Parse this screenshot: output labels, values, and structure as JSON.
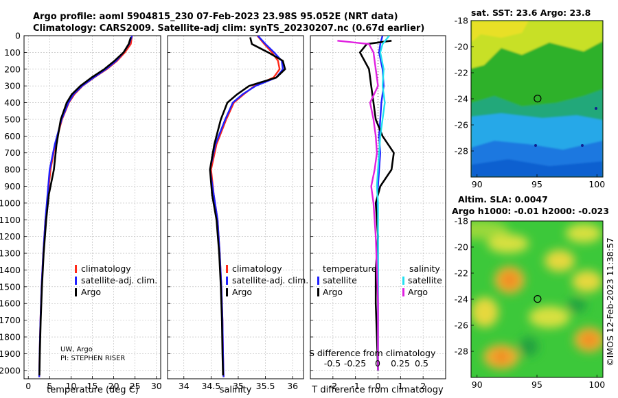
{
  "header": {
    "title_line1": "Argo profile: aoml 5904815_230 07-Feb-2023 23.98S 95.052E (NRT data)",
    "title_line2": "Climatology: CARS2009. Satellite-adj clim: synTS_20230207.nc (0.67d earlier)"
  },
  "colors": {
    "climatology": "#ff2a1a",
    "satellite": "#2020ff",
    "argo": "#000000",
    "sat_temp": "#2020ff",
    "sat_sal": "#22e0f0",
    "argo_sal": "#e020e0"
  },
  "credit": {
    "line1": "UW, Argo",
    "line2": "PI: STEPHEN RISER"
  },
  "timestamp": "©IMOS 12-Feb-2023 11:38:57",
  "chart_data": [
    {
      "type": "line",
      "id": "temperature",
      "xlabel": "temperature (deg C)",
      "ylabel": "",
      "xlim": [
        -1,
        31
      ],
      "ylim": [
        2050,
        0
      ],
      "xticks": [
        0,
        5,
        10,
        15,
        20,
        25,
        30
      ],
      "yticks": [
        0,
        100,
        200,
        300,
        400,
        500,
        600,
        700,
        800,
        900,
        1000,
        1100,
        1200,
        1300,
        1400,
        1500,
        1600,
        1700,
        1800,
        1900,
        2000
      ],
      "legend": [
        "climatology",
        "satellite-adj. clim.",
        "Argo"
      ],
      "series": [
        {
          "name": "climatology",
          "color": "#ff2a1a",
          "x": [
            24.3,
            24.0,
            22.6,
            20.8,
            18.4,
            15.4,
            12.7,
            10.8,
            9.5,
            7.9,
            6.3,
            5.2,
            4.6,
            4.0,
            3.5,
            3.1,
            2.85,
            2.65,
            2.55
          ],
          "y": [
            0,
            50,
            100,
            150,
            200,
            250,
            300,
            350,
            400,
            500,
            650,
            800,
            950,
            1100,
            1300,
            1500,
            1700,
            1900,
            2040
          ]
        },
        {
          "name": "satellite-adj. clim.",
          "color": "#2020ff",
          "x": [
            24.3,
            23.6,
            22.3,
            20.6,
            18.2,
            15.3,
            12.6,
            10.6,
            9.4,
            7.8,
            6.2,
            5.0,
            4.5,
            4.0,
            3.5,
            3.1,
            2.85,
            2.65,
            2.55
          ],
          "y": [
            0,
            50,
            100,
            150,
            200,
            250,
            300,
            350,
            400,
            500,
            650,
            800,
            950,
            1100,
            1300,
            1500,
            1700,
            1900,
            2040
          ]
        },
        {
          "name": "Argo",
          "color": "#000000",
          "x": [
            24.0,
            23.5,
            22.3,
            20.2,
            17.8,
            14.8,
            12.2,
            10.2,
            9.0,
            7.6,
            6.6,
            6.0,
            4.8,
            4.2,
            3.6,
            3.2,
            2.9,
            2.7,
            2.6
          ],
          "y": [
            10,
            50,
            100,
            150,
            200,
            250,
            300,
            350,
            400,
            500,
            650,
            800,
            950,
            1100,
            1300,
            1500,
            1700,
            1900,
            2030
          ]
        }
      ]
    },
    {
      "type": "line",
      "id": "salinity",
      "xlabel": "salinity",
      "xlim": [
        33.7,
        36.2
      ],
      "ylim": [
        2050,
        0
      ],
      "xticks": [
        34,
        34.5,
        35,
        35.5,
        36
      ],
      "legend": [
        "climatology",
        "satellite-adj. clim.",
        "Argo"
      ],
      "series": [
        {
          "name": "climatology",
          "color": "#ff2a1a",
          "x": [
            35.35,
            35.48,
            35.62,
            35.73,
            35.76,
            35.65,
            35.3,
            35.1,
            34.92,
            34.78,
            34.6,
            34.5,
            34.55,
            34.62,
            34.66,
            34.69,
            34.71,
            34.72,
            34.73
          ],
          "y": [
            0,
            50,
            100,
            150,
            200,
            250,
            300,
            350,
            400,
            500,
            650,
            800,
            950,
            1100,
            1300,
            1500,
            1700,
            1900,
            2040
          ]
        },
        {
          "name": "satellite-adj. clim.",
          "color": "#2020ff",
          "x": [
            35.36,
            35.5,
            35.66,
            35.8,
            35.82,
            35.7,
            35.32,
            35.08,
            34.9,
            34.76,
            34.58,
            34.48,
            34.55,
            34.62,
            34.66,
            34.69,
            34.71,
            34.72,
            34.73
          ],
          "y": [
            0,
            50,
            100,
            150,
            200,
            250,
            300,
            350,
            400,
            500,
            650,
            800,
            950,
            1100,
            1300,
            1500,
            1700,
            1900,
            2040
          ]
        },
        {
          "name": "Argo",
          "color": "#000000",
          "x": [
            35.22,
            35.25,
            35.55,
            35.82,
            35.86,
            35.7,
            35.2,
            34.98,
            34.8,
            34.68,
            34.56,
            34.48,
            34.52,
            34.6,
            34.65,
            34.68,
            34.7,
            34.71,
            34.72
          ],
          "y": [
            10,
            50,
            100,
            150,
            200,
            250,
            300,
            350,
            400,
            500,
            650,
            800,
            950,
            1100,
            1300,
            1500,
            1700,
            1900,
            2030
          ]
        }
      ]
    },
    {
      "type": "line",
      "id": "difference",
      "xlabel": "T difference from climatology",
      "xlabel2": "S difference from climatology",
      "s_tick_labels": [
        "-0.5",
        "-0.25",
        "0",
        "0.25",
        "0.5"
      ],
      "xlim": [
        -3,
        3
      ],
      "ylim": [
        2050,
        0
      ],
      "xticks": [
        -2,
        -1,
        0,
        1,
        2
      ],
      "legend_titles": [
        "temperature",
        "salinity"
      ],
      "legend": [
        "satellite",
        "Argo",
        "satellite",
        "Argo"
      ],
      "series": [
        {
          "name": "temperature satellite",
          "color": "#2020ff",
          "x": [
            0.2,
            0.1,
            0.05,
            0.2,
            0.25,
            0.15,
            0.1,
            0.05,
            0.1,
            0.05,
            0.0,
            -0.05,
            0.0,
            0.0,
            0.0,
            0.0,
            0.0
          ],
          "y": [
            0,
            50,
            100,
            200,
            300,
            400,
            500,
            600,
            700,
            800,
            900,
            1000,
            1200,
            1400,
            1600,
            1800,
            2000
          ]
        },
        {
          "name": "temperature Argo",
          "color": "#000000",
          "x": [
            0.6,
            -0.5,
            -0.8,
            -0.4,
            -0.3,
            -0.2,
            -0.1,
            0.2,
            0.7,
            0.6,
            0.1,
            -0.1,
            0.0,
            -0.1,
            -0.1,
            -0.05,
            0.0
          ],
          "y": [
            30,
            50,
            100,
            200,
            300,
            400,
            500,
            600,
            700,
            800,
            900,
            1000,
            1200,
            1400,
            1600,
            1800,
            2000
          ]
        },
        {
          "name": "salinity satellite",
          "color": "#22e0f0",
          "x": [
            0.5,
            0.2,
            0.1,
            0.25,
            0.2,
            0.3,
            0.2,
            0.1,
            0.05,
            0.0,
            -0.05,
            0.0,
            0.0,
            0.0,
            0.0,
            0.0,
            0.0
          ],
          "y": [
            0,
            50,
            100,
            200,
            300,
            400,
            500,
            600,
            700,
            800,
            900,
            1000,
            1200,
            1400,
            1600,
            1800,
            2000
          ]
        },
        {
          "name": "salinity Argo",
          "color": "#e020e0",
          "x": [
            -1.8,
            -0.4,
            -0.2,
            -0.1,
            0.0,
            -0.35,
            -0.2,
            -0.1,
            -0.05,
            -0.15,
            -0.3,
            -0.2,
            -0.1,
            -0.05,
            0.0,
            0.0,
            0.0
          ],
          "y": [
            30,
            50,
            100,
            200,
            300,
            400,
            500,
            600,
            700,
            800,
            900,
            1000,
            1200,
            1400,
            1600,
            1800,
            2000
          ]
        }
      ]
    },
    {
      "type": "heatmap",
      "id": "sst_map",
      "title": "sat. SST: 23.6 Argo: 23.8",
      "xticks": [
        90,
        95,
        100
      ],
      "yticks": [
        -18,
        -20,
        -22,
        -24,
        -26,
        -28
      ],
      "xlim": [
        89.5,
        100.5
      ],
      "ylim": [
        -30,
        -18
      ],
      "marker": {
        "lon": 95.05,
        "lat": -23.98
      }
    },
    {
      "type": "heatmap",
      "id": "sla_map",
      "title_line1": "Altim. SLA: 0.0047",
      "title_line2": "Argo h1000: -0.01 h2000: -0.023",
      "xticks": [
        90,
        95,
        100
      ],
      "yticks": [
        -18,
        -20,
        -22,
        -24,
        -26,
        -28
      ],
      "xlim": [
        89.5,
        100.5
      ],
      "ylim": [
        -30,
        -18
      ],
      "marker": {
        "lon": 95.05,
        "lat": -23.98
      }
    }
  ]
}
